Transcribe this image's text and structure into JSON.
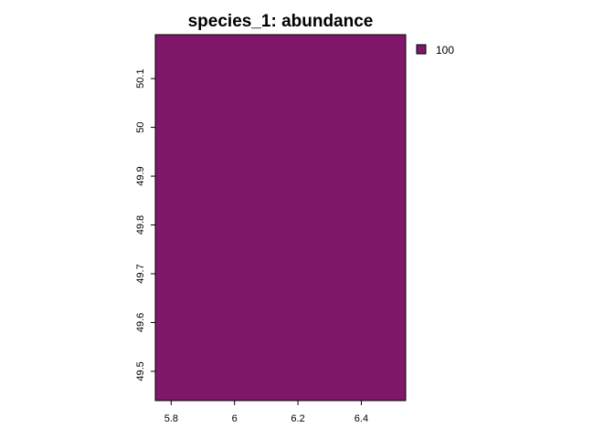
{
  "chart_data": {
    "type": "heatmap",
    "title": "species_1: abundance",
    "xlabel": "",
    "ylabel": "",
    "xlim": [
      5.75,
      6.54
    ],
    "ylim": [
      49.44,
      50.19
    ],
    "x_ticks": [
      5.8,
      6,
      6.2,
      6.4
    ],
    "x_tick_labels": [
      "5.8",
      "6",
      "6.2",
      "6.4"
    ],
    "y_ticks": [
      49.5,
      49.6,
      49.7,
      49.8,
      49.9,
      50,
      50.1
    ],
    "y_tick_labels": [
      "49.5",
      "49.6",
      "49.7",
      "49.8",
      "49.9",
      "50",
      "50.1"
    ],
    "cells": [
      {
        "x": [
          5.75,
          6.54
        ],
        "y": [
          49.44,
          50.19
        ],
        "value": 100
      }
    ],
    "legend": {
      "position": "top-right",
      "entries": [
        {
          "label": "100",
          "color": "#811769"
        }
      ]
    },
    "grid": false,
    "colors": {
      "fill": "#811769",
      "border": "#000000"
    }
  }
}
